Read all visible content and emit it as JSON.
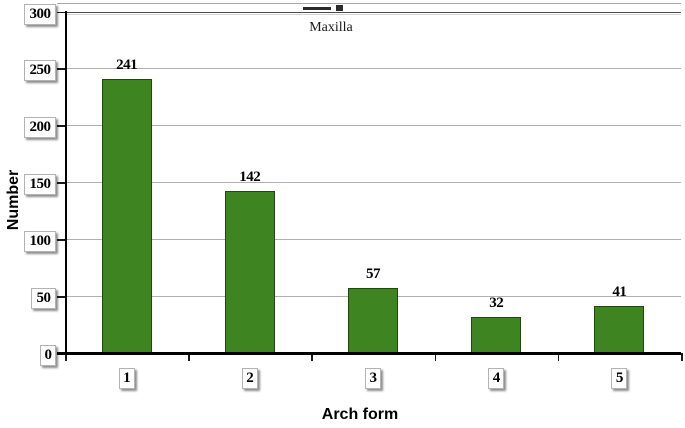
{
  "chart_data": {
    "type": "bar",
    "legend": [
      "Maxilla"
    ],
    "legend_position": "top-center (legend above is partially cropped by image edge)",
    "categories": [
      "1",
      "2",
      "3",
      "4",
      "5"
    ],
    "values": [
      241,
      142,
      57,
      32,
      41
    ],
    "data_labels": [
      "241",
      "142",
      "57",
      "32",
      "41"
    ],
    "xlabel": "Arch form",
    "ylabel": "Number",
    "ylim": [
      0,
      300
    ],
    "yticks": [
      0,
      50,
      100,
      150,
      200,
      250,
      300
    ],
    "grid": "horizontal gridlines on",
    "bar_color": "#3E8420",
    "bar_border_color": "#1E4A0D",
    "axis_color": "#000000",
    "tick_label_style": "white boxes with gray border and drop shadow"
  }
}
